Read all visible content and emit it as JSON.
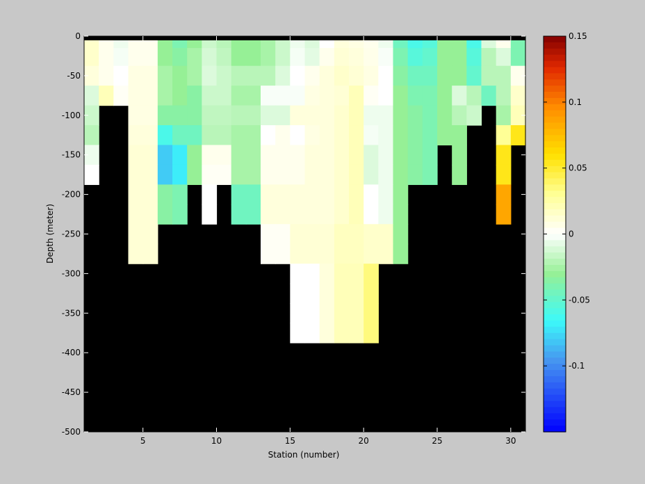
{
  "chart_data": {
    "type": "heatmap",
    "title": "",
    "xlabel": "Station (number)",
    "ylabel": "Depth (meter)",
    "xlim": [
      1,
      31
    ],
    "ylim": [
      -500,
      0
    ],
    "xticks": [
      5,
      10,
      15,
      20,
      25,
      30
    ],
    "yticks": [
      0,
      -50,
      -100,
      -150,
      -200,
      -250,
      -300,
      -350,
      -400,
      -450,
      -500
    ],
    "color_limits": [
      -0.15,
      0.15
    ],
    "colormap": "jet-with-white-center",
    "colorbar_ticks": [
      0.15,
      0.1,
      0.05,
      0,
      -0.05,
      -0.1
    ],
    "colorbar_tick_labels": [
      "0.15",
      "0.1",
      "0.05",
      "0",
      "-0.05",
      "-0.1"
    ],
    "colorbar_location": "right",
    "masked_color": "#000000",
    "depth_levels": [
      -5,
      -25,
      -50,
      -75,
      -100,
      -125,
      -150,
      -175,
      -200,
      -225,
      -250,
      -275,
      -300,
      -325,
      -350,
      -375,
      -400
    ],
    "stations": [
      1,
      2,
      3,
      4,
      5,
      6,
      7,
      8,
      9,
      10,
      11,
      12,
      13,
      14,
      15,
      16,
      17,
      18,
      19,
      20,
      21,
      22,
      23,
      24,
      25,
      26,
      27,
      28,
      29,
      30
    ],
    "station_max_depth": [
      -200,
      -100,
      -100,
      -300,
      -300,
      -250,
      -250,
      -200,
      -250,
      -200,
      -250,
      -250,
      -300,
      -300,
      -400,
      -400,
      -400,
      -400,
      -400,
      -400,
      -300,
      -300,
      -200,
      -200,
      -150,
      -200,
      -125,
      -100,
      -250,
      -150
    ],
    "values": [
      [
        0.015,
        0.005,
        -0.005,
        0.005,
        0.005,
        -0.03,
        -0.04,
        -0.03,
        -0.015,
        -0.02,
        -0.03,
        -0.03,
        -0.025,
        -0.015,
        -0.005,
        -0.01,
        0.0,
        0.01,
        0.008,
        0.005,
        -0.005,
        -0.045,
        -0.06,
        -0.055,
        -0.03,
        -0.03,
        -0.06,
        -0.01,
        0.005,
        -0.04
      ],
      [
        0.015,
        0.005,
        -0.003,
        0.005,
        0.005,
        -0.03,
        -0.035,
        -0.025,
        -0.012,
        -0.018,
        -0.03,
        -0.03,
        -0.025,
        -0.015,
        -0.003,
        -0.008,
        0.005,
        0.012,
        0.01,
        0.006,
        -0.002,
        -0.04,
        -0.055,
        -0.05,
        -0.03,
        -0.03,
        -0.055,
        -0.02,
        -0.01,
        -0.04
      ],
      [
        0.01,
        0.005,
        0.0,
        0.008,
        0.008,
        -0.025,
        -0.03,
        -0.025,
        -0.01,
        -0.015,
        -0.02,
        -0.02,
        -0.02,
        -0.01,
        0.0,
        0.005,
        0.01,
        0.015,
        0.012,
        0.008,
        0.0,
        -0.035,
        -0.045,
        -0.045,
        -0.03,
        -0.03,
        -0.05,
        -0.02,
        -0.02,
        0.005
      ],
      [
        -0.01,
        0.02,
        0.003,
        0.008,
        0.008,
        -0.025,
        -0.03,
        -0.035,
        -0.015,
        -0.015,
        -0.025,
        -0.025,
        -0.002,
        -0.002,
        -0.002,
        0.008,
        0.01,
        0.012,
        0.02,
        0.003,
        0.0,
        -0.03,
        -0.04,
        -0.04,
        -0.03,
        -0.01,
        -0.02,
        -0.045,
        -0.02,
        0.015
      ],
      [
        -0.015,
        null,
        null,
        0.008,
        0.008,
        -0.035,
        -0.035,
        -0.035,
        -0.018,
        -0.018,
        -0.02,
        -0.02,
        -0.01,
        -0.01,
        0.01,
        0.01,
        0.01,
        0.014,
        0.02,
        -0.005,
        -0.005,
        -0.03,
        -0.035,
        -0.04,
        -0.03,
        -0.02,
        -0.015,
        null,
        -0.025,
        0.02
      ],
      [
        -0.02,
        null,
        null,
        0.01,
        0.01,
        -0.06,
        -0.045,
        -0.045,
        -0.02,
        -0.02,
        -0.025,
        -0.025,
        0.0,
        0.005,
        0.0,
        0.008,
        0.01,
        0.014,
        0.02,
        -0.003,
        -0.005,
        -0.03,
        -0.035,
        -0.04,
        -0.03,
        -0.03,
        null,
        null,
        0.03,
        0.055
      ],
      [
        -0.005,
        null,
        null,
        0.012,
        0.012,
        -0.08,
        -0.07,
        -0.03,
        0.005,
        0.005,
        -0.025,
        -0.025,
        0.005,
        0.005,
        0.005,
        0.01,
        0.01,
        0.014,
        0.02,
        -0.01,
        -0.005,
        -0.03,
        -0.035,
        -0.04,
        null,
        -0.03,
        null,
        null,
        0.055,
        null
      ],
      [
        0.0,
        null,
        null,
        0.012,
        0.012,
        -0.08,
        -0.07,
        -0.03,
        0.003,
        0.003,
        -0.025,
        -0.025,
        0.005,
        0.005,
        0.005,
        0.01,
        0.01,
        0.014,
        0.02,
        -0.01,
        -0.005,
        -0.03,
        -0.035,
        -0.04,
        null,
        -0.03,
        null,
        null,
        0.055,
        null
      ],
      [
        null,
        null,
        null,
        0.012,
        0.012,
        -0.035,
        -0.04,
        null,
        0.0,
        null,
        -0.045,
        -0.045,
        0.01,
        0.01,
        0.01,
        0.01,
        0.01,
        0.014,
        0.02,
        0.0,
        -0.005,
        -0.03,
        null,
        null,
        null,
        null,
        null,
        null,
        0.085,
        null
      ],
      [
        null,
        null,
        null,
        0.012,
        0.012,
        -0.035,
        -0.04,
        null,
        0.0,
        null,
        -0.045,
        -0.045,
        0.01,
        0.01,
        0.01,
        0.01,
        0.01,
        0.014,
        0.02,
        0.0,
        -0.005,
        -0.03,
        null,
        null,
        null,
        null,
        null,
        null,
        0.085,
        null
      ],
      [
        null,
        null,
        null,
        0.012,
        0.012,
        null,
        null,
        null,
        null,
        null,
        null,
        null,
        0.003,
        0.003,
        0.012,
        0.012,
        0.012,
        0.018,
        0.018,
        0.015,
        0.015,
        -0.03,
        null,
        null,
        null,
        null,
        null,
        null,
        null,
        null
      ],
      [
        null,
        null,
        null,
        0.012,
        0.012,
        null,
        null,
        null,
        null,
        null,
        null,
        null,
        0.003,
        0.003,
        0.012,
        0.012,
        0.012,
        0.018,
        0.018,
        0.015,
        0.015,
        -0.03,
        null,
        null,
        null,
        null,
        null,
        null,
        null,
        null
      ],
      [
        null,
        null,
        null,
        null,
        null,
        null,
        null,
        null,
        null,
        null,
        null,
        null,
        null,
        null,
        0.0,
        0.0,
        0.01,
        0.02,
        0.02,
        0.035,
        null,
        null,
        null,
        null,
        null,
        null,
        null,
        null,
        null,
        null
      ],
      [
        null,
        null,
        null,
        null,
        null,
        null,
        null,
        null,
        null,
        null,
        null,
        null,
        null,
        null,
        0.0,
        0.0,
        0.01,
        0.02,
        0.02,
        0.035,
        null,
        null,
        null,
        null,
        null,
        null,
        null,
        null,
        null,
        null
      ],
      [
        null,
        null,
        null,
        null,
        null,
        null,
        null,
        null,
        null,
        null,
        null,
        null,
        null,
        null,
        0.0,
        0.0,
        0.01,
        0.02,
        0.02,
        0.035,
        null,
        null,
        null,
        null,
        null,
        null,
        null,
        null,
        null,
        null
      ],
      [
        null,
        null,
        null,
        null,
        null,
        null,
        null,
        null,
        null,
        null,
        null,
        null,
        null,
        null,
        0.0,
        0.0,
        0.01,
        0.02,
        0.02,
        0.035,
        null,
        null,
        null,
        null,
        null,
        null,
        null,
        null,
        null,
        null
      ]
    ]
  }
}
